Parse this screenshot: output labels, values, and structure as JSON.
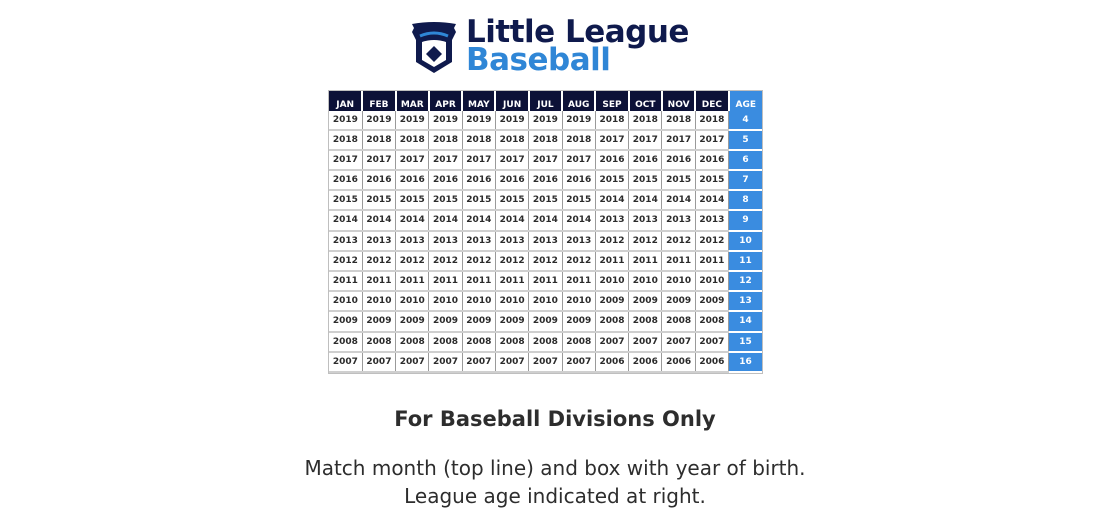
{
  "logo": {
    "line1": "Little League",
    "line2": "Baseball",
    "colors": {
      "navy": "#0f1a4d",
      "blue": "#2f86d6"
    }
  },
  "table": {
    "headers": [
      "JAN",
      "FEB",
      "MAR",
      "APR",
      "MAY",
      "JUN",
      "JUL",
      "AUG",
      "SEP",
      "OCT",
      "NOV",
      "DEC",
      "AGE"
    ],
    "rows": [
      [
        "2019",
        "2019",
        "2019",
        "2019",
        "2019",
        "2019",
        "2019",
        "2019",
        "2018",
        "2018",
        "2018",
        "2018",
        "4"
      ],
      [
        "2018",
        "2018",
        "2018",
        "2018",
        "2018",
        "2018",
        "2018",
        "2018",
        "2017",
        "2017",
        "2017",
        "2017",
        "5"
      ],
      [
        "2017",
        "2017",
        "2017",
        "2017",
        "2017",
        "2017",
        "2017",
        "2017",
        "2016",
        "2016",
        "2016",
        "2016",
        "6"
      ],
      [
        "2016",
        "2016",
        "2016",
        "2016",
        "2016",
        "2016",
        "2016",
        "2016",
        "2015",
        "2015",
        "2015",
        "2015",
        "7"
      ],
      [
        "2015",
        "2015",
        "2015",
        "2015",
        "2015",
        "2015",
        "2015",
        "2015",
        "2014",
        "2014",
        "2014",
        "2014",
        "8"
      ],
      [
        "2014",
        "2014",
        "2014",
        "2014",
        "2014",
        "2014",
        "2014",
        "2014",
        "2013",
        "2013",
        "2013",
        "2013",
        "9"
      ],
      [
        "2013",
        "2013",
        "2013",
        "2013",
        "2013",
        "2013",
        "2013",
        "2013",
        "2012",
        "2012",
        "2012",
        "2012",
        "10"
      ],
      [
        "2012",
        "2012",
        "2012",
        "2012",
        "2012",
        "2012",
        "2012",
        "2012",
        "2011",
        "2011",
        "2011",
        "2011",
        "11"
      ],
      [
        "2011",
        "2011",
        "2011",
        "2011",
        "2011",
        "2011",
        "2011",
        "2011",
        "2010",
        "2010",
        "2010",
        "2010",
        "12"
      ],
      [
        "2010",
        "2010",
        "2010",
        "2010",
        "2010",
        "2010",
        "2010",
        "2010",
        "2009",
        "2009",
        "2009",
        "2009",
        "13"
      ],
      [
        "2009",
        "2009",
        "2009",
        "2009",
        "2009",
        "2009",
        "2009",
        "2009",
        "2008",
        "2008",
        "2008",
        "2008",
        "14"
      ],
      [
        "2008",
        "2008",
        "2008",
        "2008",
        "2008",
        "2008",
        "2008",
        "2008",
        "2007",
        "2007",
        "2007",
        "2007",
        "15"
      ],
      [
        "2007",
        "2007",
        "2007",
        "2007",
        "2007",
        "2007",
        "2007",
        "2007",
        "2006",
        "2006",
        "2006",
        "2006",
        "16"
      ]
    ],
    "colors": {
      "header_bg": "#0c1137",
      "age_bg": "#3a8ce0"
    }
  },
  "caption": {
    "title": "For Baseball Divisions Only",
    "line1": "Match month (top line) and box with year of birth.",
    "line2": "League age indicated at right."
  }
}
